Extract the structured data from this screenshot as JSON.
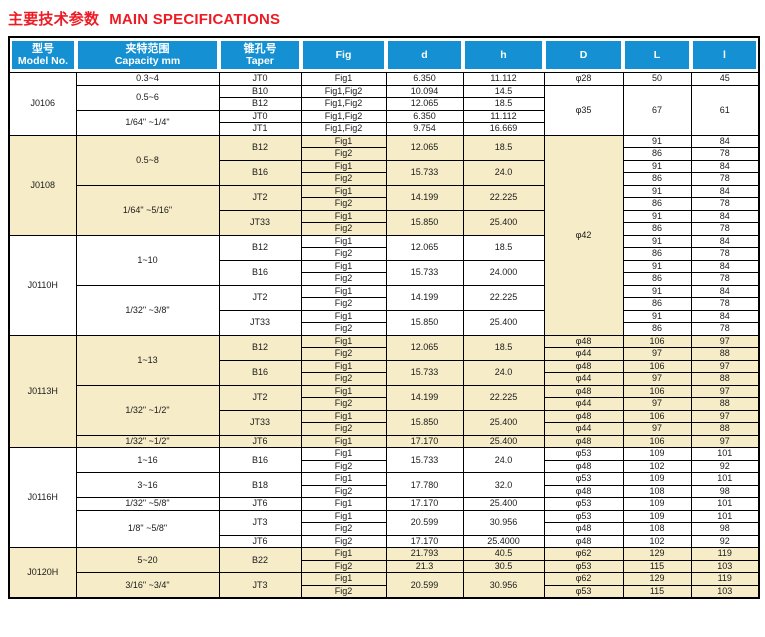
{
  "title": {
    "zh": "主要技术参数",
    "en": "MAIN SPECIFICATIONS"
  },
  "colors": {
    "accent_red": "#ed1c24",
    "header_blue": "#1591d3",
    "row_tan": "#f7ecc8"
  },
  "table": {
    "columns": [
      {
        "zh": "型号",
        "en": "Model No."
      },
      {
        "zh": "夹特范围",
        "en": "Capacity mm"
      },
      {
        "zh": "锥孔号",
        "en": "Taper"
      },
      {
        "en": "Fig"
      },
      {
        "en": "d"
      },
      {
        "en": "h"
      },
      {
        "en": "D"
      },
      {
        "en": "L"
      },
      {
        "en": "l"
      }
    ],
    "rows": [
      {
        "bg": "white",
        "cells": [
          {
            "t": "J0106",
            "rs": 5
          },
          {
            "t": "0.3~4"
          },
          {
            "t": "JT0"
          },
          {
            "t": "Fig1"
          },
          {
            "t": "6.350"
          },
          {
            "t": "11.112"
          },
          {
            "t": "φ28"
          },
          {
            "t": "50"
          },
          {
            "t": "45"
          }
        ]
      },
      {
        "bg": "white",
        "cells": [
          {
            "t": "0.5~6",
            "rs": 2
          },
          {
            "t": "B10"
          },
          {
            "t": "Fig1,Fig2"
          },
          {
            "t": "10.094"
          },
          {
            "t": "14.5"
          },
          {
            "t": "φ35",
            "rs": 4
          },
          {
            "t": "67",
            "rs": 4
          },
          {
            "t": "61",
            "rs": 4
          }
        ]
      },
      {
        "bg": "white",
        "cells": [
          {
            "t": "B12"
          },
          {
            "t": "Fig1,Fig2"
          },
          {
            "t": "12.065"
          },
          {
            "t": "18.5"
          }
        ]
      },
      {
        "bg": "white",
        "cells": [
          {
            "t": "1/64\" ~1/4\"",
            "rs": 2
          },
          {
            "t": "JT0"
          },
          {
            "t": "Fig1,Fig2"
          },
          {
            "t": "6.350"
          },
          {
            "t": "11.112"
          }
        ]
      },
      {
        "bg": "white",
        "cells": [
          {
            "t": "JT1"
          },
          {
            "t": "Fig1,Fig2"
          },
          {
            "t": "9.754"
          },
          {
            "t": "16.669"
          }
        ]
      },
      {
        "bg": "tan",
        "cells": [
          {
            "t": "J0108",
            "rs": 8
          },
          {
            "t": "0.5~8",
            "rs": 4
          },
          {
            "t": "B12",
            "rs": 2
          },
          {
            "t": "Fig1"
          },
          {
            "t": "12.065",
            "rs": 2
          },
          {
            "t": "18.5",
            "rs": 2
          },
          {
            "t": "φ42",
            "rs": 16,
            "bg": "t"
          },
          {
            "t": "91",
            "bg": "w"
          },
          {
            "t": "84",
            "bg": "w"
          }
        ]
      },
      {
        "bg": "tan",
        "cells": [
          {
            "t": "Fig2"
          },
          {
            "t": "86",
            "bg": "w"
          },
          {
            "t": "78",
            "bg": "w"
          }
        ]
      },
      {
        "bg": "tan",
        "cells": [
          {
            "t": "B16",
            "rs": 2
          },
          {
            "t": "Fig1"
          },
          {
            "t": "15.733",
            "rs": 2
          },
          {
            "t": "24.0",
            "rs": 2
          },
          {
            "t": "91",
            "bg": "w"
          },
          {
            "t": "84",
            "bg": "w"
          }
        ]
      },
      {
        "bg": "tan",
        "cells": [
          {
            "t": "Fig2"
          },
          {
            "t": "86",
            "bg": "w"
          },
          {
            "t": "78",
            "bg": "w"
          }
        ]
      },
      {
        "bg": "tan",
        "cells": [
          {
            "t": "1/64\" ~5/16\"",
            "rs": 4
          },
          {
            "t": "JT2",
            "rs": 2
          },
          {
            "t": "Fig1"
          },
          {
            "t": "14.199",
            "rs": 2
          },
          {
            "t": "22.225",
            "rs": 2
          },
          {
            "t": "91",
            "bg": "w"
          },
          {
            "t": "84",
            "bg": "w"
          }
        ]
      },
      {
        "bg": "tan",
        "cells": [
          {
            "t": "Fig2"
          },
          {
            "t": "86",
            "bg": "w"
          },
          {
            "t": "78",
            "bg": "w"
          }
        ]
      },
      {
        "bg": "tan",
        "cells": [
          {
            "t": "JT33",
            "rs": 2
          },
          {
            "t": "Fig1"
          },
          {
            "t": "15.850",
            "rs": 2
          },
          {
            "t": "25.400",
            "rs": 2
          },
          {
            "t": "91",
            "bg": "w"
          },
          {
            "t": "84",
            "bg": "w"
          }
        ]
      },
      {
        "bg": "tan",
        "cells": [
          {
            "t": "Fig2"
          },
          {
            "t": "86",
            "bg": "w"
          },
          {
            "t": "78",
            "bg": "w"
          }
        ]
      },
      {
        "bg": "white",
        "cells": [
          {
            "t": "J0110H",
            "rs": 8
          },
          {
            "t": "1~10",
            "rs": 4
          },
          {
            "t": "B12",
            "rs": 2
          },
          {
            "t": "Fig1"
          },
          {
            "t": "12.065",
            "rs": 2
          },
          {
            "t": "18.5",
            "rs": 2
          },
          {
            "t": "91"
          },
          {
            "t": "84"
          }
        ]
      },
      {
        "bg": "white",
        "cells": [
          {
            "t": "Fig2"
          },
          {
            "t": "86"
          },
          {
            "t": "78"
          }
        ]
      },
      {
        "bg": "white",
        "cells": [
          {
            "t": "B16",
            "rs": 2
          },
          {
            "t": "Fig1"
          },
          {
            "t": "15.733",
            "rs": 2
          },
          {
            "t": "24.000",
            "rs": 2
          },
          {
            "t": "91"
          },
          {
            "t": "84"
          }
        ]
      },
      {
        "bg": "white",
        "cells": [
          {
            "t": "Fig2"
          },
          {
            "t": "86"
          },
          {
            "t": "78"
          }
        ]
      },
      {
        "bg": "white",
        "cells": [
          {
            "t": "1/32\" ~3/8\"",
            "rs": 4
          },
          {
            "t": "JT2",
            "rs": 2
          },
          {
            "t": "Fig1"
          },
          {
            "t": "14.199",
            "rs": 2
          },
          {
            "t": "22.225",
            "rs": 2
          },
          {
            "t": "91"
          },
          {
            "t": "84"
          }
        ]
      },
      {
        "bg": "white",
        "cells": [
          {
            "t": "Fig2"
          },
          {
            "t": "86"
          },
          {
            "t": "78"
          }
        ]
      },
      {
        "bg": "white",
        "cells": [
          {
            "t": "JT33",
            "rs": 2
          },
          {
            "t": "Fig1"
          },
          {
            "t": "15.850",
            "rs": 2
          },
          {
            "t": "25.400",
            "rs": 2
          },
          {
            "t": "91"
          },
          {
            "t": "84"
          }
        ]
      },
      {
        "bg": "white",
        "cells": [
          {
            "t": "Fig2"
          },
          {
            "t": "86"
          },
          {
            "t": "78"
          }
        ]
      },
      {
        "bg": "tan",
        "cells": [
          {
            "t": "J0113H",
            "rs": 9
          },
          {
            "t": "1~13",
            "rs": 4
          },
          {
            "t": "B12",
            "rs": 2
          },
          {
            "t": "Fig1"
          },
          {
            "t": "12.065",
            "rs": 2
          },
          {
            "t": "18.5",
            "rs": 2
          },
          {
            "t": "φ48"
          },
          {
            "t": "106"
          },
          {
            "t": "97"
          }
        ]
      },
      {
        "bg": "tan",
        "cells": [
          {
            "t": "Fig2"
          },
          {
            "t": "φ44"
          },
          {
            "t": "97"
          },
          {
            "t": "88"
          }
        ]
      },
      {
        "bg": "tan",
        "cells": [
          {
            "t": "B16",
            "rs": 2
          },
          {
            "t": "Fig1"
          },
          {
            "t": "15.733",
            "rs": 2
          },
          {
            "t": "24.0",
            "rs": 2
          },
          {
            "t": "φ48"
          },
          {
            "t": "106"
          },
          {
            "t": "97"
          }
        ]
      },
      {
        "bg": "tan",
        "cells": [
          {
            "t": "Fig2"
          },
          {
            "t": "φ44"
          },
          {
            "t": "97"
          },
          {
            "t": "88"
          }
        ]
      },
      {
        "bg": "tan",
        "cells": [
          {
            "t": "1/32\" ~1/2\"",
            "rs": 4
          },
          {
            "t": "JT2",
            "rs": 2
          },
          {
            "t": "Fig1"
          },
          {
            "t": "14.199",
            "rs": 2
          },
          {
            "t": "22.225",
            "rs": 2
          },
          {
            "t": "φ48"
          },
          {
            "t": "106"
          },
          {
            "t": "97"
          }
        ]
      },
      {
        "bg": "tan",
        "cells": [
          {
            "t": "Fig2"
          },
          {
            "t": "φ44"
          },
          {
            "t": "97"
          },
          {
            "t": "88"
          }
        ]
      },
      {
        "bg": "tan",
        "cells": [
          {
            "t": "JT33",
            "rs": 2
          },
          {
            "t": "Fig1"
          },
          {
            "t": "15.850",
            "rs": 2
          },
          {
            "t": "25.400",
            "rs": 2
          },
          {
            "t": "φ48"
          },
          {
            "t": "106"
          },
          {
            "t": "97"
          }
        ]
      },
      {
        "bg": "tan",
        "cells": [
          {
            "t": "Fig2"
          },
          {
            "t": "φ44"
          },
          {
            "t": "97"
          },
          {
            "t": "88"
          }
        ]
      },
      {
        "bg": "tan",
        "cells": [
          {
            "t": "1/32\" ~1/2\""
          },
          {
            "t": "JT6"
          },
          {
            "t": "Fig1"
          },
          {
            "t": "17.170"
          },
          {
            "t": "25.400"
          },
          {
            "t": "φ48"
          },
          {
            "t": "106"
          },
          {
            "t": "97"
          }
        ]
      },
      {
        "bg": "white",
        "cells": [
          {
            "t": "J0116H",
            "rs": 8
          },
          {
            "t": "1~16",
            "rs": 2
          },
          {
            "t": "B16",
            "rs": 2
          },
          {
            "t": "Fig1"
          },
          {
            "t": "15.733",
            "rs": 2
          },
          {
            "t": "24.0",
            "rs": 2
          },
          {
            "t": "φ53"
          },
          {
            "t": "109"
          },
          {
            "t": "101"
          }
        ]
      },
      {
        "bg": "white",
        "cells": [
          {
            "t": "Fig2"
          },
          {
            "t": "φ48"
          },
          {
            "t": "102"
          },
          {
            "t": "92"
          }
        ]
      },
      {
        "bg": "white",
        "cells": [
          {
            "t": "3~16",
            "rs": 2
          },
          {
            "t": "B18",
            "rs": 2
          },
          {
            "t": "Fig1"
          },
          {
            "t": "17.780",
            "rs": 2
          },
          {
            "t": "32.0",
            "rs": 2
          },
          {
            "t": "φ53"
          },
          {
            "t": "109"
          },
          {
            "t": "101"
          }
        ]
      },
      {
        "bg": "white",
        "cells": [
          {
            "t": "Fig2"
          },
          {
            "t": "φ48"
          },
          {
            "t": "108"
          },
          {
            "t": "98"
          }
        ]
      },
      {
        "bg": "white",
        "cells": [
          {
            "t": "1/32\" ~5/8\""
          },
          {
            "t": "JT6"
          },
          {
            "t": "Fig1"
          },
          {
            "t": "17.170"
          },
          {
            "t": "25.400"
          },
          {
            "t": "φ53"
          },
          {
            "t": "109"
          },
          {
            "t": "101"
          }
        ]
      },
      {
        "bg": "white",
        "cells": [
          {
            "t": "1/8\" ~5/8\"",
            "rs": 3
          },
          {
            "t": "JT3",
            "rs": 2
          },
          {
            "t": "Fig1"
          },
          {
            "t": "20.599",
            "rs": 2
          },
          {
            "t": "30.956",
            "rs": 2
          },
          {
            "t": "φ53"
          },
          {
            "t": "109"
          },
          {
            "t": "101"
          }
        ]
      },
      {
        "bg": "white",
        "cells": [
          {
            "t": "Fig2"
          },
          {
            "t": "φ48"
          },
          {
            "t": "108"
          },
          {
            "t": "98"
          }
        ]
      },
      {
        "bg": "white",
        "cells": [
          {
            "t": "JT6"
          },
          {
            "t": "Fig2"
          },
          {
            "t": "17.170"
          },
          {
            "t": "25.4000"
          },
          {
            "t": "φ48"
          },
          {
            "t": "102"
          },
          {
            "t": "92"
          }
        ]
      },
      {
        "bg": "tan",
        "cells": [
          {
            "t": "J0120H",
            "rs": 4
          },
          {
            "t": "5~20",
            "rs": 2
          },
          {
            "t": "B22",
            "rs": 2
          },
          {
            "t": "Fig1"
          },
          {
            "t": "21.793"
          },
          {
            "t": "40.5"
          },
          {
            "t": "φ62"
          },
          {
            "t": "129"
          },
          {
            "t": "119"
          }
        ]
      },
      {
        "bg": "tan",
        "cells": [
          {
            "t": "Fig2"
          },
          {
            "t": "21.3"
          },
          {
            "t": "30.5"
          },
          {
            "t": "φ53"
          },
          {
            "t": "115"
          },
          {
            "t": "103"
          }
        ]
      },
      {
        "bg": "tan",
        "cells": [
          {
            "t": "3/16\" ~3/4\"",
            "rs": 2
          },
          {
            "t": "JT3",
            "rs": 2
          },
          {
            "t": "Fig1"
          },
          {
            "t": "20.599",
            "rs": 2
          },
          {
            "t": "30.956",
            "rs": 2
          },
          {
            "t": "φ62"
          },
          {
            "t": "129"
          },
          {
            "t": "119"
          }
        ]
      },
      {
        "bg": "tan",
        "cells": [
          {
            "t": "Fig2"
          },
          {
            "t": "φ53"
          },
          {
            "t": "115"
          },
          {
            "t": "103"
          }
        ]
      }
    ]
  }
}
